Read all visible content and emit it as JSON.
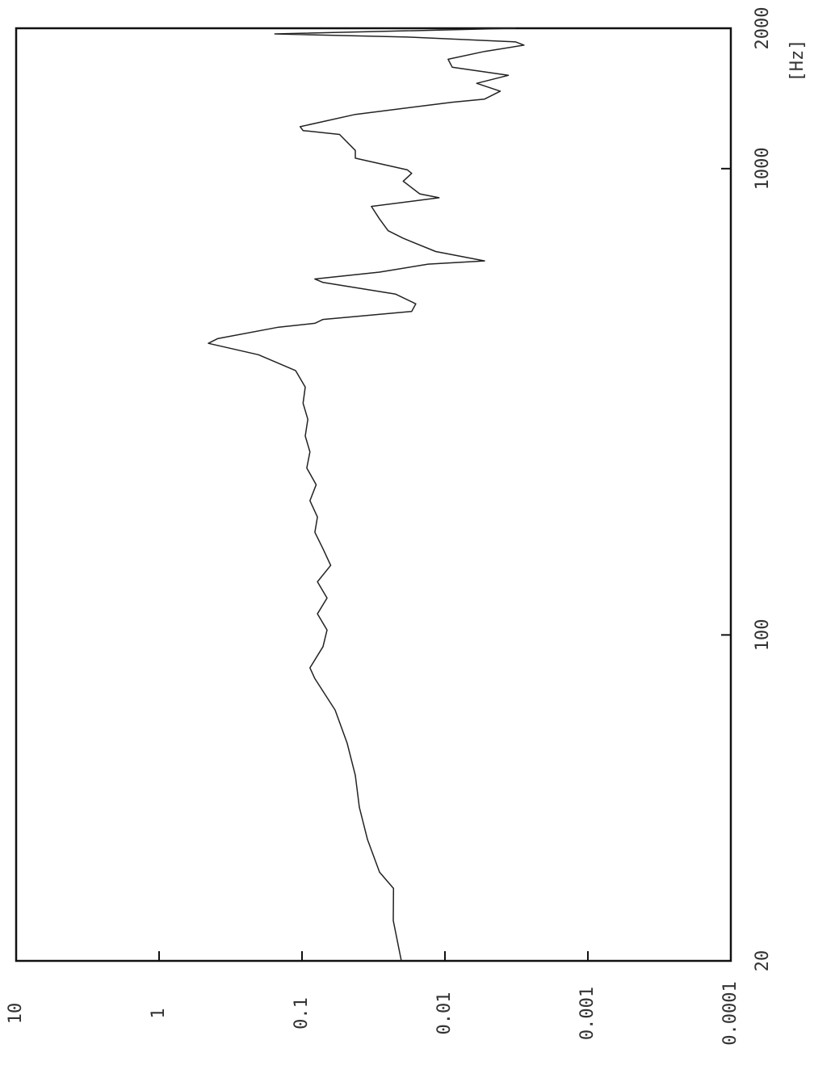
{
  "chart_data": {
    "type": "line",
    "x_label": "[Hz]",
    "xscale": "log",
    "yscale": "log",
    "xlim": [
      20,
      2000
    ],
    "xticks": [
      20,
      100,
      1000,
      2000
    ],
    "ylim": [
      0.0001,
      10
    ],
    "yticks": [
      10,
      1,
      0.1,
      0.01,
      0.001,
      0.0001
    ],
    "color": "#222222",
    "x": [
      20,
      24.4,
      28.6,
      31,
      36.4,
      42.7,
      50,
      58.6,
      69,
      80.6,
      85,
      94.4,
      102.5,
      111,
      120,
      130,
      141,
      153,
      166,
      179,
      194,
      210,
      228,
      247,
      267,
      290,
      314,
      340,
      369,
      399,
      422,
      432,
      457,
      466,
      475,
      494,
      513,
      538,
      570,
      580,
      600,
      624,
      634,
      664,
      709,
      736,
      780,
      830,
      866,
      883,
      940,
      977,
      994,
      1053,
      1094,
      1184,
      1207,
      1230,
      1307,
      1388,
      1410,
      1466,
      1524,
      1585,
      1650,
      1716,
      1784,
      1840,
      1870,
      1915,
      1945,
      2000
    ],
    "values": [
      0.0202,
      0.023,
      0.0229,
      0.0287,
      0.0348,
      0.0397,
      0.0424,
      0.0483,
      0.0587,
      0.0813,
      0.088,
      0.0713,
      0.0668,
      0.078,
      0.0668,
      0.078,
      0.063,
      0.0713,
      0.0813,
      0.078,
      0.088,
      0.0796,
      0.0926,
      0.088,
      0.0949,
      0.091,
      0.0983,
      0.0949,
      0.111,
      0.202,
      0.452,
      0.39,
      0.146,
      0.0813,
      0.0713,
      0.0171,
      0.016,
      0.0221,
      0.0713,
      0.0813,
      0.0287,
      0.0131,
      0.00528,
      0.0116,
      0.0196,
      0.025,
      0.0287,
      0.0327,
      0.011,
      0.015,
      0.0196,
      0.0171,
      0.0183,
      0.0424,
      0.0424,
      0.0546,
      0.0983,
      0.103,
      0.0424,
      0.0089,
      0.00528,
      0.0041,
      0.006,
      0.0036,
      0.0089,
      0.0095,
      0.00528,
      0.0028,
      0.0032,
      0.0183,
      0.155,
      0.0032
    ]
  }
}
